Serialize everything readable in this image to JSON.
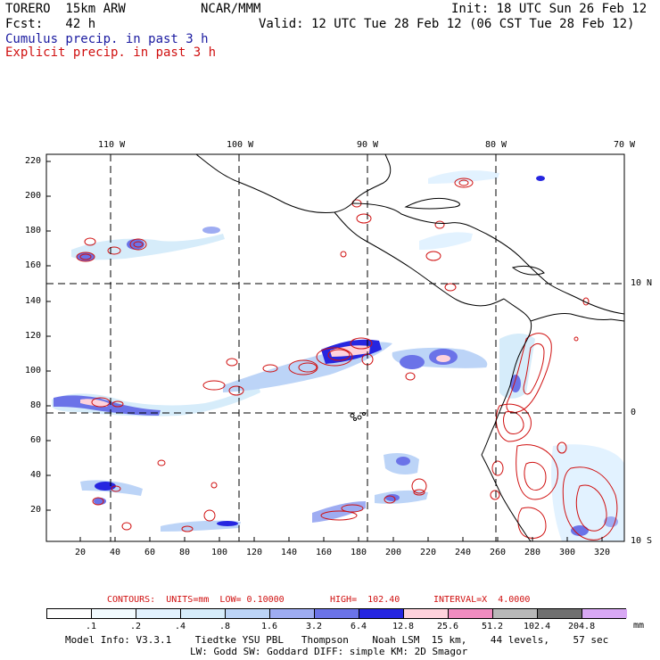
{
  "header": {
    "model": "TORERO  15km ARW",
    "center": "NCAR/MMM",
    "init": "Init: 18 UTC Sun 26 Feb 12",
    "fcst": "Fcst:   42 h",
    "valid": "Valid: 12 UTC Tue 28 Feb 12 (06 CST Tue 28 Feb 12)",
    "cumulus": "Cumulus precip. in past 3 h",
    "explicit": "Explicit precip. in past 3 h"
  },
  "map": {
    "top_lon_labels": [
      "110 W",
      "100 W",
      "90 W",
      "80 W",
      "70 W"
    ],
    "right_lat_labels": [
      "10 N",
      "0",
      "10 S"
    ],
    "y_ticks": [
      "220",
      "200",
      "180",
      "160",
      "140",
      "120",
      "100",
      "80",
      "60",
      "40",
      "20"
    ],
    "x_ticks": [
      "20",
      "40",
      "60",
      "80",
      "100",
      "120",
      "140",
      "160",
      "180",
      "200",
      "220",
      "240",
      "260",
      "280",
      "300",
      "320"
    ]
  },
  "contours": {
    "units": "CONTOURS:  UNITS=mm  LOW= 0.10000",
    "high": "HIGH=  102.40",
    "interval": "INTERVAL=X  4.0000"
  },
  "colorbar": {
    "labels": [
      ".1",
      ".2",
      ".4",
      ".8",
      "1.6",
      "3.2",
      "6.4",
      "12.8",
      "25.6",
      "51.2",
      "102.4",
      "204.8"
    ],
    "unit": "mm",
    "colors": [
      "#ffffff",
      "#f2fbff",
      "#e2f2ff",
      "#d6ecfa",
      "#bcd4f7",
      "#9eacf2",
      "#6b73e8",
      "#2626e0",
      "#ffd2dc",
      "#f08cc0",
      "#b8b8b8",
      "#707070",
      "#d8a8f4"
    ]
  },
  "footer": {
    "line1": "Model Info: V3.3.1    Tiedtke YSU PBL   Thompson    Noah LSM  15 km,    44 levels,    57 sec",
    "line2": "LW: Godd SW: Goddard DIFF: simple KM: 2D Smagor"
  }
}
